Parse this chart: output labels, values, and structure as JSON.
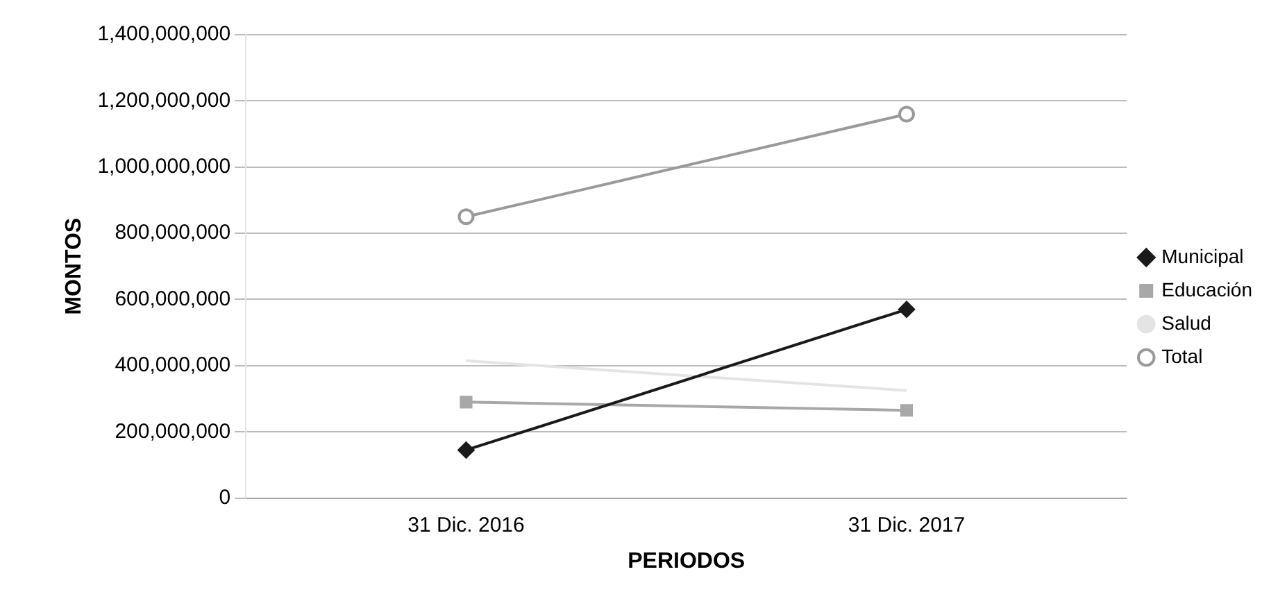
{
  "chart_data": {
    "type": "line",
    "xlabel": "PERIODOS",
    "ylabel": "MONTOS",
    "categories": [
      "31 Dic. 2016",
      "31 Dic. 2017"
    ],
    "series": [
      {
        "name": "Municipal",
        "color": "#1a1a1a",
        "values": [
          145000000,
          570000000
        ],
        "marker": "diamond"
      },
      {
        "name": "Educación",
        "color": "#a8a8a8",
        "values": [
          290000000,
          265000000
        ],
        "marker": "square"
      },
      {
        "name": "Salud",
        "color": "#e4e4e4",
        "values": [
          415000000,
          325000000
        ],
        "marker": "none"
      },
      {
        "name": "Total",
        "color": "#9a9a9a",
        "values": [
          850000000,
          1160000000
        ],
        "marker": "circle"
      }
    ],
    "ylim": [
      0,
      1400000000
    ],
    "yticks": [
      0,
      {
        "value": 200000000,
        "label": "200,000,000"
      },
      {
        "value": 400000000,
        "label": "400,000,000"
      },
      {
        "value": 600000000,
        "label": "600,000,000"
      },
      {
        "value": 800000000,
        "label": "800,000,000"
      },
      {
        "value": 1000000000,
        "label": "1,000,000,000"
      },
      {
        "value": 1200000000,
        "label": "1,200,000,000"
      },
      {
        "value": 1400000000,
        "label": "1,400,000,000"
      }
    ],
    "grid": "y",
    "legend": "right",
    "line_style": "solid"
  }
}
